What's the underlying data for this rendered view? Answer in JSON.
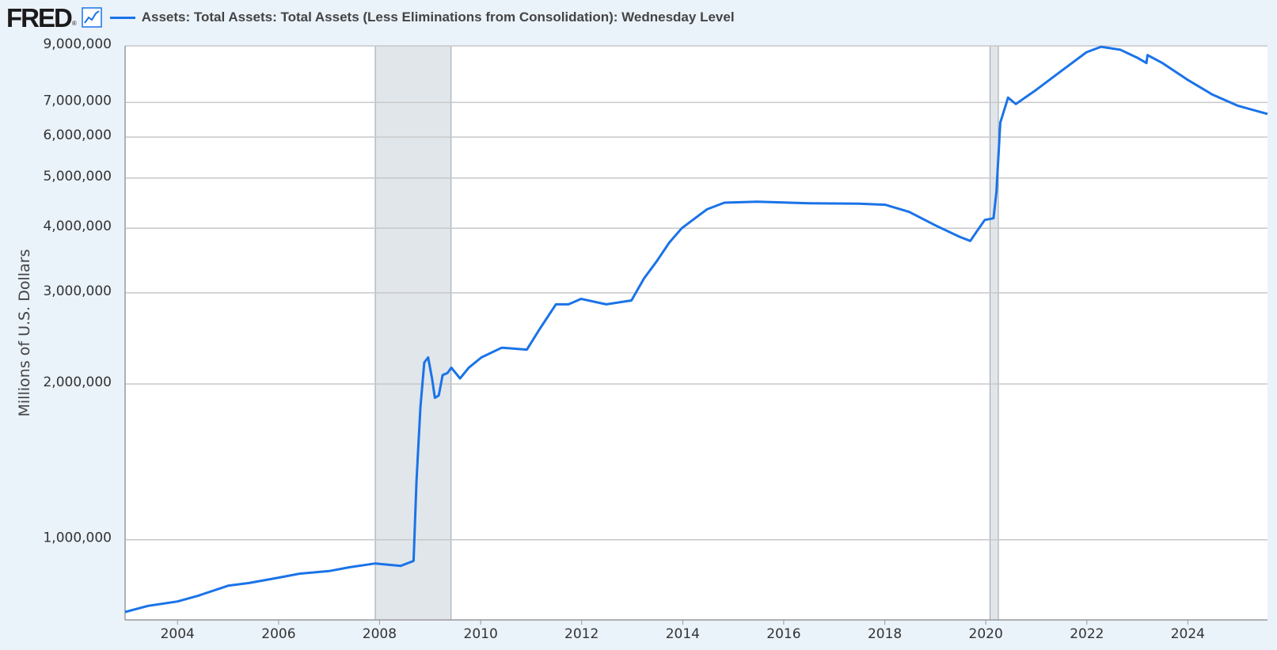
{
  "header": {
    "logo": "FRED",
    "logo_mark": "®",
    "graph_icon": "line-chart-icon",
    "legend_label": "Assets: Total Assets: Total Assets (Less Eliminations from Consolidation): Wednesday Level"
  },
  "colors": {
    "series": "#1a73e8",
    "background": "#eaf2fa",
    "plot_bg": "#ffffff",
    "grid": "#c8c8c8",
    "recession": "#e1e6eb"
  },
  "chart_data": {
    "type": "line",
    "ylabel": "Millions of U.S. Dollars",
    "yscale": "log",
    "ylim": [
      700000,
      9000000
    ],
    "xlim": [
      "2002-12-18",
      "2025-07-30"
    ],
    "xticks": [
      "2004",
      "2006",
      "2008",
      "2010",
      "2012",
      "2014",
      "2016",
      "2018",
      "2020",
      "2022",
      "2024"
    ],
    "yticks": [
      {
        "value": 1000000,
        "label": "1,000,000"
      },
      {
        "value": 2000000,
        "label": "2,000,000"
      },
      {
        "value": 3000000,
        "label": "3,000,000"
      },
      {
        "value": 4000000,
        "label": "4,000,000"
      },
      {
        "value": 5000000,
        "label": "5,000,000"
      },
      {
        "value": 6000000,
        "label": "6,000,000"
      },
      {
        "value": 7000000,
        "label": "7,000,000"
      },
      {
        "value": 9000000,
        "label": "9,000,000"
      }
    ],
    "recessions": [
      {
        "start": "2007-12-01",
        "end": "2009-06-01"
      },
      {
        "start": "2020-02-01",
        "end": "2020-04-01"
      }
    ],
    "grid": true,
    "series": [
      {
        "points": [
          [
            "2002-12-18",
            725000
          ],
          [
            "2003-06-01",
            745000
          ],
          [
            "2004-01-01",
            760000
          ],
          [
            "2004-06-01",
            780000
          ],
          [
            "2005-01-01",
            815000
          ],
          [
            "2005-06-01",
            825000
          ],
          [
            "2006-01-01",
            845000
          ],
          [
            "2006-06-01",
            860000
          ],
          [
            "2007-01-01",
            870000
          ],
          [
            "2007-06-01",
            885000
          ],
          [
            "2007-12-01",
            900000
          ],
          [
            "2008-06-01",
            890000
          ],
          [
            "2008-09-03",
            910000
          ],
          [
            "2008-09-24",
            1300000
          ],
          [
            "2008-10-22",
            1800000
          ],
          [
            "2008-11-19",
            2200000
          ],
          [
            "2008-12-17",
            2250000
          ],
          [
            "2009-01-14",
            2050000
          ],
          [
            "2009-02-04",
            1880000
          ],
          [
            "2009-03-04",
            1900000
          ],
          [
            "2009-04-01",
            2080000
          ],
          [
            "2009-05-06",
            2100000
          ],
          [
            "2009-06-03",
            2150000
          ],
          [
            "2009-08-05",
            2050000
          ],
          [
            "2009-10-07",
            2150000
          ],
          [
            "2010-01-06",
            2250000
          ],
          [
            "2010-06-02",
            2350000
          ],
          [
            "2010-12-01",
            2330000
          ],
          [
            "2011-03-02",
            2550000
          ],
          [
            "2011-06-29",
            2850000
          ],
          [
            "2011-09-28",
            2850000
          ],
          [
            "2011-12-28",
            2920000
          ],
          [
            "2012-06-27",
            2850000
          ],
          [
            "2012-12-26",
            2900000
          ],
          [
            "2013-03-27",
            3200000
          ],
          [
            "2013-06-26",
            3450000
          ],
          [
            "2013-09-25",
            3750000
          ],
          [
            "2013-12-25",
            4000000
          ],
          [
            "2014-06-25",
            4350000
          ],
          [
            "2014-10-29",
            4480000
          ],
          [
            "2015-06-24",
            4500000
          ],
          [
            "2016-06-29",
            4470000
          ],
          [
            "2017-06-28",
            4460000
          ],
          [
            "2018-01-03",
            4440000
          ],
          [
            "2018-06-27",
            4300000
          ],
          [
            "2019-01-02",
            4050000
          ],
          [
            "2019-06-26",
            3850000
          ],
          [
            "2019-09-11",
            3780000
          ],
          [
            "2019-10-30",
            3950000
          ],
          [
            "2019-12-25",
            4150000
          ],
          [
            "2020-02-26",
            4180000
          ],
          [
            "2020-03-18",
            4700000
          ],
          [
            "2020-04-15",
            6400000
          ],
          [
            "2020-06-10",
            7150000
          ],
          [
            "2020-08-05",
            6950000
          ],
          [
            "2020-12-30",
            7400000
          ],
          [
            "2021-06-30",
            8050000
          ],
          [
            "2021-12-29",
            8750000
          ],
          [
            "2022-04-13",
            8965000
          ],
          [
            "2022-08-31",
            8850000
          ],
          [
            "2022-12-28",
            8550000
          ],
          [
            "2023-03-08",
            8340000
          ],
          [
            "2023-03-15",
            8640000
          ],
          [
            "2023-06-28",
            8350000
          ],
          [
            "2023-12-27",
            7750000
          ],
          [
            "2024-06-26",
            7250000
          ],
          [
            "2024-12-25",
            6900000
          ],
          [
            "2025-07-30",
            6650000
          ]
        ]
      }
    ]
  }
}
